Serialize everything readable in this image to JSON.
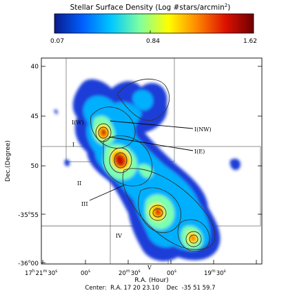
{
  "chart_data": {
    "type": "heatmap",
    "colorbar": {
      "title_parts": [
        "Stellar Surface Density (Log #stars/arcmin",
        "2",
        ")"
      ],
      "ticks": [
        "0.07",
        "0.84",
        "1.62"
      ],
      "range": [
        0.07,
        1.62
      ],
      "colors": [
        "#0a1a8c",
        "#0060ff",
        "#00c8ff",
        "#7fffa0",
        "#ffff00",
        "#ff8800",
        "#dd1100",
        "#6e0000"
      ]
    },
    "xaxis": {
      "label": "R.A. (Hour)",
      "ticks": [
        {
          "text": "17",
          "sup": "h",
          "main": "21",
          "sup2": "m",
          "tail": "30",
          "tail_sup": "s"
        },
        {
          "text": "00",
          "sup": "s"
        },
        {
          "text": "20",
          "sup": "m",
          "tail": "30",
          "tail_sup": "s"
        },
        {
          "text": "00",
          "sup": "s"
        },
        {
          "text": "19",
          "sup": "m",
          "tail": "30",
          "tail_sup": "s"
        }
      ]
    },
    "yaxis": {
      "label": "Dec.(Degree)",
      "ticks": [
        {
          "text": "40"
        },
        {
          "text": "45"
        },
        {
          "text": "50"
        },
        {
          "text": "-35",
          "sup": "o",
          "tail": "55"
        },
        {
          "text": "-36",
          "sup": "o",
          "tail": "00"
        }
      ]
    },
    "annotations": [
      {
        "label": "I(W)"
      },
      {
        "label": "I(NW)"
      },
      {
        "label": "I(E)"
      },
      {
        "label": "I"
      },
      {
        "label": "II"
      },
      {
        "label": "III"
      },
      {
        "label": "IV"
      },
      {
        "label": "V"
      }
    ],
    "peaks": [
      {
        "name": "I(W)",
        "value": 1.35
      },
      {
        "name": "I(E)",
        "value": 1.6
      },
      {
        "name": "IV",
        "value": 1.25
      },
      {
        "name": "V",
        "value": 1.1
      }
    ],
    "footer": "Center:  R.A. 17 20 23.10    Dec  -35 51 59.7"
  }
}
